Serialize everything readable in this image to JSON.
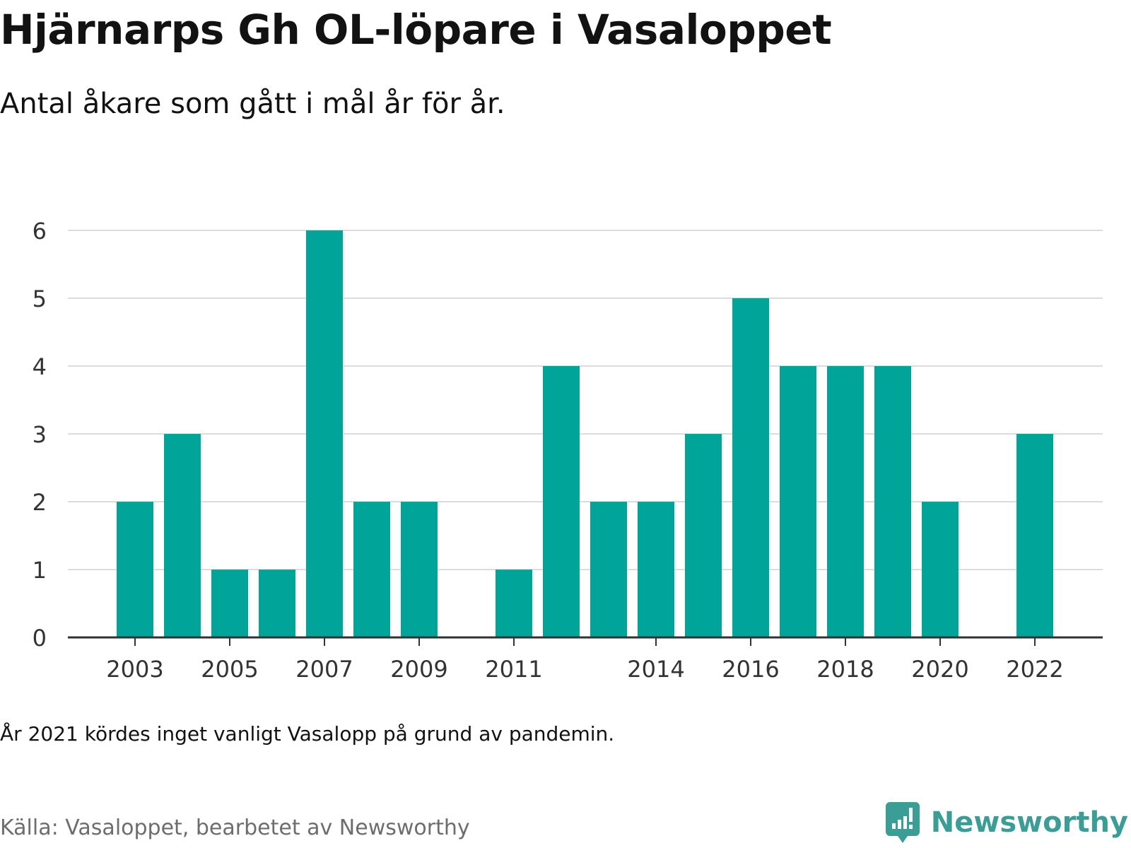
{
  "header": {
    "title": "Hjärnarps Gh OL-löpare i Vasaloppet",
    "subtitle": "Antal åkare som gått i mål år för år."
  },
  "footer": {
    "note": "År 2021 kördes inget vanligt Vasalopp på grund av pandemin.",
    "source": "Källa: Vasaloppet, bearbetet av Newsworthy",
    "brand_name": "Newsworthy",
    "brand_logo_icon": "bar-chart-speech-bubble-icon"
  },
  "colors": {
    "bar": "#00a499",
    "grid": "#dcdcdc",
    "axis": "#333333",
    "brand": "#3b9e96",
    "text": "#121212",
    "source_text": "#6d6d6d"
  },
  "chart_data": {
    "type": "bar",
    "title": "Hjärnarps Gh OL-löpare i Vasaloppet",
    "subtitle": "Antal åkare som gått i mål år för år.",
    "xlabel": "",
    "ylabel": "",
    "categories": [
      "2003",
      "2004",
      "2005",
      "2006",
      "2007",
      "2008",
      "2009",
      "2010",
      "2011",
      "2012",
      "2013",
      "2014",
      "2015",
      "2016",
      "2017",
      "2018",
      "2019",
      "2020",
      "2021",
      "2022"
    ],
    "values": [
      2,
      3,
      1,
      1,
      6,
      2,
      2,
      0,
      1,
      4,
      2,
      2,
      3,
      5,
      4,
      4,
      4,
      2,
      0,
      3
    ],
    "x_tick_labels": [
      "2003",
      "2005",
      "2007",
      "2009",
      "2011",
      "2014",
      "2016",
      "2018",
      "2020",
      "2022"
    ],
    "y_ticks": [
      0,
      1,
      2,
      3,
      4,
      5,
      6
    ],
    "ylim": [
      0,
      6
    ],
    "grid": true,
    "legend": "none"
  }
}
